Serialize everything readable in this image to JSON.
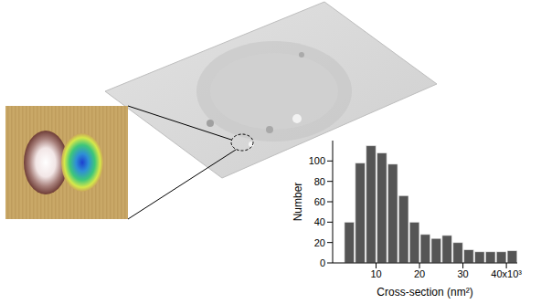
{
  "chart_data": {
    "type": "histogram",
    "x_label": "Cross-section (nm²)",
    "y_label": "Number",
    "bins": [
      2500,
      5000,
      7500,
      10000,
      12500,
      15000,
      17500,
      20000,
      22500,
      25000,
      27500,
      30000,
      32500,
      35000,
      37500,
      40000,
      42500
    ],
    "counts": [
      40,
      98,
      115,
      108,
      97,
      66,
      40,
      28,
      24,
      27,
      20,
      13,
      11,
      11,
      11,
      12
    ],
    "color": "#555555",
    "xlim": [
      0,
      42500
    ],
    "xticks": [
      {
        "value": 10000,
        "label": "10"
      },
      {
        "value": 20000,
        "label": "20"
      },
      {
        "value": 30000,
        "label": "30"
      },
      {
        "value": 40000,
        "label": "40x10³"
      }
    ],
    "ylim": [
      0,
      120
    ],
    "yticks": [
      0,
      20,
      40,
      60,
      80,
      100
    ],
    "grid": false
  }
}
